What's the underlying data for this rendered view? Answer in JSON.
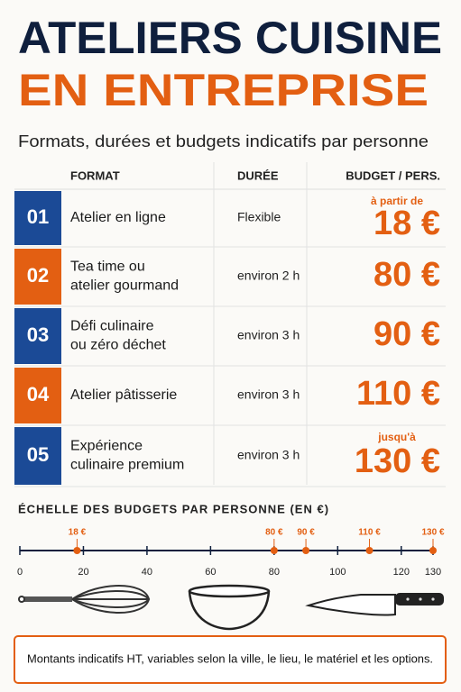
{
  "header": {
    "title_line1": "ATELIERS CUISINE",
    "title_line2": "EN ENTREPRISE",
    "subtitle": "Formats, durées et budgets indicatifs par personne"
  },
  "table": {
    "columns": [
      "FORMAT",
      "DURÉE",
      "BUDGET / PERS."
    ],
    "rows": [
      {
        "num": "01",
        "format": [
          "Atelier en ligne"
        ],
        "duration": "Flexible",
        "note": "à partir de",
        "budget": "18 €"
      },
      {
        "num": "02",
        "format": [
          "Tea time ou",
          "atelier gourmand"
        ],
        "duration": "environ 2 h",
        "budget": "80 €"
      },
      {
        "num": "03",
        "format": [
          "Défi culinaire",
          "ou zéro déchet"
        ],
        "duration": "environ 3 h",
        "budget": "90 €"
      },
      {
        "num": "04",
        "format": [
          "Atelier pâtisserie"
        ],
        "duration": "environ 3 h",
        "budget": "110 €"
      },
      {
        "num": "05",
        "format": [
          "Expérience",
          "culinaire premium"
        ],
        "duration": "environ 3 h",
        "note": "jusqu'à",
        "budget": "130 €"
      }
    ]
  },
  "chart_data": {
    "type": "scale",
    "title": "ÉCHELLE DES BUDGETS PAR PERSONNE (EN €)",
    "xlim": [
      0,
      130
    ],
    "xticks": [
      0,
      20,
      40,
      60,
      80,
      100,
      120,
      130
    ],
    "markers": [
      {
        "value": 18,
        "label": "18 €"
      },
      {
        "value": 80,
        "label": "80 €"
      },
      {
        "value": 90,
        "label": "90 €"
      },
      {
        "value": 110,
        "label": "110 €"
      },
      {
        "value": 130,
        "label": "130 €"
      }
    ],
    "color": "#e35f12"
  },
  "footer": {
    "note": "Montants indicatifs HT, variables selon la ville, le lieu, le matériel et les options."
  }
}
